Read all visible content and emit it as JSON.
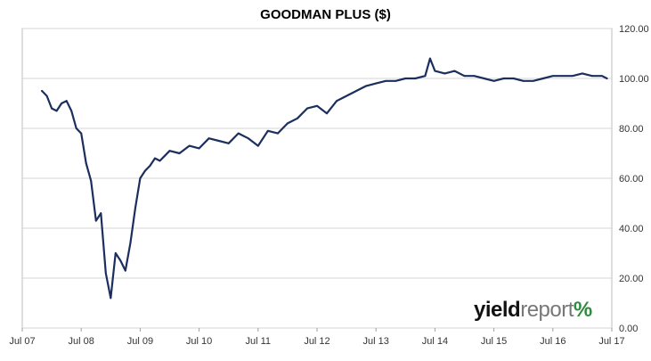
{
  "chart_data": {
    "type": "line",
    "title": "GOODMAN PLUS ($)",
    "x_ticks": [
      "Jul 07",
      "Jul 08",
      "Jul 09",
      "Jul 10",
      "Jul 11",
      "Jul 12",
      "Jul 13",
      "Jul 14",
      "Jul 15",
      "Jul 16",
      "Jul 17"
    ],
    "y_ticks": [
      "0.00",
      "20.00",
      "40.00",
      "60.00",
      "80.00",
      "100.00",
      "120.00"
    ],
    "ylim": [
      0,
      120
    ],
    "xlim": [
      "2007-07",
      "2017-07"
    ],
    "y_axis_position": "right",
    "grid": "horizontal",
    "line_color": "#1b2f5e",
    "series": [
      {
        "x": [
          "2007-11",
          "2007-12",
          "2008-01",
          "2008-02",
          "2008-03",
          "2008-04",
          "2008-05",
          "2008-06",
          "2008-07",
          "2008-08",
          "2008-09",
          "2008-10",
          "2008-11",
          "2008-12",
          "2009-01",
          "2009-02",
          "2009-03",
          "2009-04",
          "2009-05",
          "2009-06",
          "2009-07",
          "2009-08",
          "2009-09",
          "2009-10",
          "2009-11",
          "2009-12",
          "2010-01",
          "2010-03",
          "2010-05",
          "2010-07",
          "2010-09",
          "2010-11",
          "2011-01",
          "2011-03",
          "2011-05",
          "2011-07",
          "2011-09",
          "2011-11",
          "2012-01",
          "2012-03",
          "2012-05",
          "2012-07",
          "2012-09",
          "2012-11",
          "2013-01",
          "2013-03",
          "2013-05",
          "2013-07",
          "2013-09",
          "2013-11",
          "2014-01",
          "2014-03",
          "2014-05",
          "2014-06",
          "2014-07",
          "2014-09",
          "2014-11",
          "2015-01",
          "2015-03",
          "2015-05",
          "2015-07",
          "2015-09",
          "2015-11",
          "2016-01",
          "2016-03",
          "2016-05",
          "2016-07",
          "2016-09",
          "2016-11",
          "2017-01",
          "2017-03",
          "2017-05",
          "2017-06"
        ],
        "y": [
          95,
          93,
          88,
          87,
          90,
          91,
          87,
          80,
          78,
          66,
          59,
          43,
          46,
          22,
          12,
          30,
          27,
          23,
          34,
          48,
          60,
          63,
          65,
          68,
          67,
          69,
          71,
          70,
          73,
          72,
          76,
          75,
          74,
          78,
          76,
          73,
          79,
          78,
          82,
          84,
          88,
          89,
          86,
          91,
          93,
          95,
          97,
          98,
          99,
          99,
          100,
          100,
          101,
          108,
          103,
          102,
          103,
          101,
          101,
          100,
          99,
          100,
          100,
          99,
          99,
          100,
          101,
          101,
          101,
          102,
          101,
          101,
          100
        ]
      }
    ]
  },
  "logo": {
    "part1": "yield",
    "part2": "report",
    "symbol": "%"
  }
}
